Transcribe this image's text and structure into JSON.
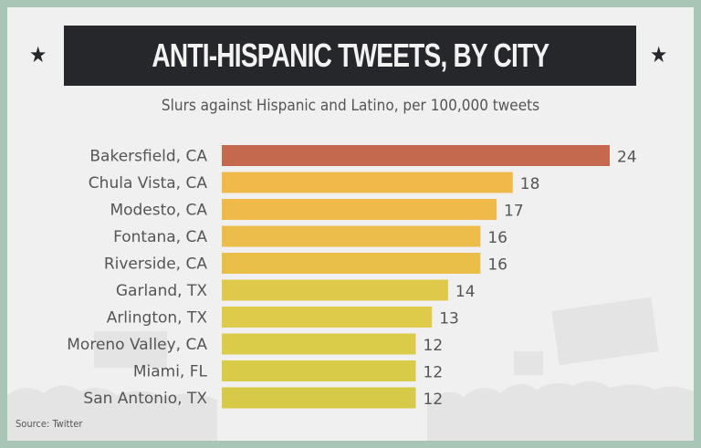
{
  "chart_data": {
    "type": "bar",
    "orientation": "horizontal",
    "title": "ANTI-HISPANIC TWEETS, BY CITY",
    "subtitle": "Slurs against Hispanic and Latino, per 100,000 tweets",
    "source": "Source: Twitter",
    "categories": [
      "Bakersfield, CA",
      "Chula Vista, CA",
      "Modesto, CA",
      "Fontana, CA",
      "Riverside, CA",
      "Garland, TX",
      "Arlington, TX",
      "Moreno Valley, CA",
      "Miami, FL",
      "San Antonio, TX"
    ],
    "values": [
      24,
      18,
      17,
      16,
      16,
      14,
      13,
      12,
      12,
      12
    ],
    "colors": [
      "#c4694e",
      "#f0b94a",
      "#efba4a",
      "#ecbd4a",
      "#e9bf49",
      "#dfc94b",
      "#dfcb4a",
      "#dacb48",
      "#d8cb48",
      "#d6ca48"
    ],
    "xlim": [
      0,
      24
    ],
    "grid": false,
    "data_labels": true
  },
  "colors": {
    "frame": "#a8c5b5",
    "background": "#f0f0f0",
    "title_bg": "#26272b",
    "text": "#555555"
  },
  "decorations": {
    "left_icon": "star-icon",
    "right_icon": "star-icon"
  }
}
